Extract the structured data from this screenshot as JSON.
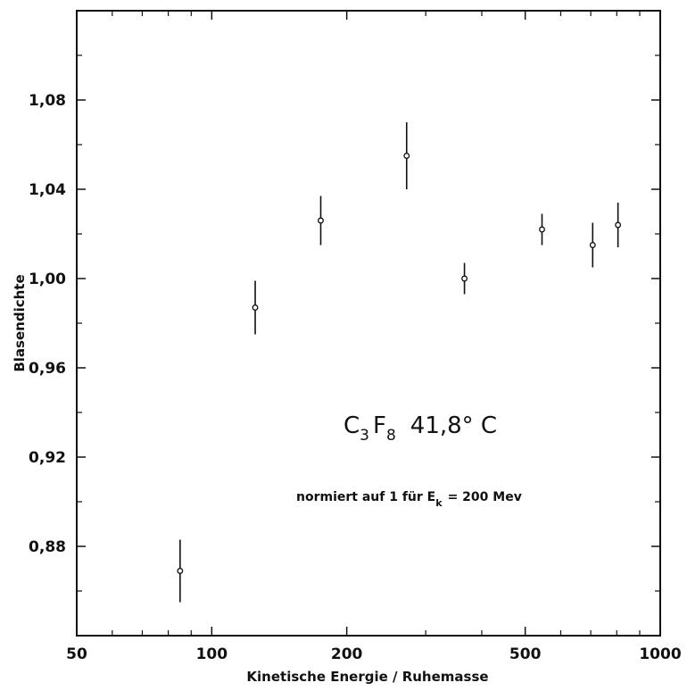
{
  "chart_data": {
    "type": "scatter",
    "xlabel": "Kinetische Energie / Ruhemasse",
    "ylabel": "Blasendichte",
    "xscale": "log",
    "xlim": [
      50,
      1000
    ],
    "ylim": [
      0.84,
      1.12
    ],
    "x_tick_labels": [
      {
        "value": 50,
        "label": "50"
      },
      {
        "value": 100,
        "label": "100"
      },
      {
        "value": 200,
        "label": "200"
      },
      {
        "value": 500,
        "label": "500"
      },
      {
        "value": 1000,
        "label": "1000"
      }
    ],
    "y_tick_labels": [
      {
        "value": 0.88,
        "label": "0,88"
      },
      {
        "value": 0.92,
        "label": "0,92"
      },
      {
        "value": 0.96,
        "label": "0,96"
      },
      {
        "value": 1.0,
        "label": "1,00"
      },
      {
        "value": 1.04,
        "label": "1,04"
      },
      {
        "value": 1.08,
        "label": "1,08"
      }
    ],
    "y_minor_ticks": [
      0.86,
      0.9,
      0.94,
      0.98,
      1.02,
      1.06,
      1.1
    ],
    "x_minor_ticks": [
      60,
      70,
      80,
      90,
      300,
      400,
      600,
      700,
      800,
      900
    ],
    "grid": false,
    "points": [
      {
        "x": 85,
        "y": 0.869,
        "err": 0.014
      },
      {
        "x": 125,
        "y": 0.987,
        "err": 0.012
      },
      {
        "x": 175,
        "y": 1.026,
        "err": 0.011
      },
      {
        "x": 272,
        "y": 1.055,
        "err": 0.015
      },
      {
        "x": 366,
        "y": 1.0,
        "err": 0.007
      },
      {
        "x": 545,
        "y": 1.022,
        "err": 0.007
      },
      {
        "x": 707,
        "y": 1.015,
        "err": 0.01
      },
      {
        "x": 805,
        "y": 1.024,
        "err": 0.01
      }
    ],
    "annotations": {
      "substance": {
        "c": "C",
        "c_sub": "3",
        "f": "F",
        "f_sub": "8",
        "temperature": "41,8° C"
      },
      "normalization": {
        "text": "normiert auf 1 für E",
        "sub": "k",
        "suffix": "= 200 Mev"
      }
    }
  }
}
